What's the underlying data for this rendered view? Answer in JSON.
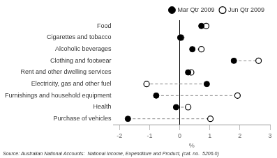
{
  "chart_data": {
    "type": "dot",
    "orientation": "horizontal",
    "categories": [
      "Food",
      "Cigarettes and tobacco",
      "Alcoholic beverages",
      "Clothing and footwear",
      "Rent and other dwelling services",
      "Electricity, gas and other fuel",
      "Furnishings and household equipment",
      "Health",
      "Purchase of vehicles"
    ],
    "series": [
      {
        "name": "Mar Qtr 2009",
        "color": "#000000",
        "marker": "circle",
        "values": [
          0.72,
          0.02,
          0.42,
          1.8,
          0.28,
          0.9,
          -0.78,
          -0.12,
          -1.72
        ]
      },
      {
        "name": "Jun Qtr 2009",
        "color": "#000000",
        "marker": "ring",
        "values": [
          0.88,
          0.05,
          0.72,
          2.62,
          0.38,
          -1.1,
          1.92,
          0.28,
          1.02
        ]
      }
    ],
    "xlabel": "%",
    "xlim": [
      -2.2,
      3.0
    ],
    "xticks": [
      -2,
      -1,
      0,
      1,
      2,
      3
    ],
    "grid": false,
    "legend": "top",
    "line_style": "dashed",
    "annotations": [
      "Source: Australian National Accounts:  National Income, Expenditure and Product, (cat. no.  5206.0)"
    ]
  }
}
